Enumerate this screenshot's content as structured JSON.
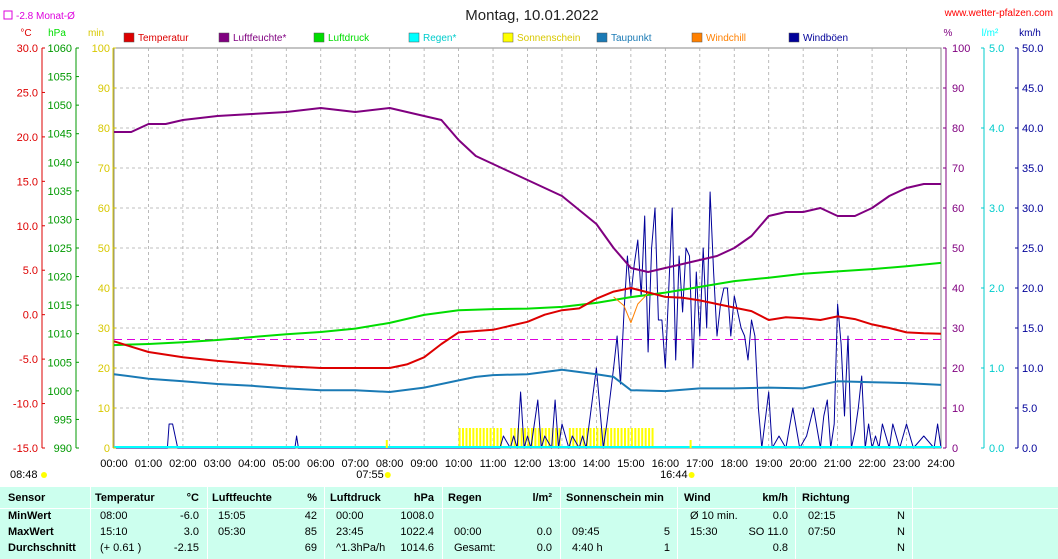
{
  "header": {
    "title": "Montag, 10.01.2022",
    "source": "www.wetter-pfalzen.com",
    "month_avg_label": "-2.8 Monat-Ø"
  },
  "units": {
    "left": [
      "°C",
      "hPa",
      "min"
    ],
    "right": [
      "%",
      "l/m²",
      "km/h"
    ]
  },
  "colors": {
    "temperature": "#dd0000",
    "humidity": "#800080",
    "pressure": "#00dd00",
    "rain": "#00ffff",
    "sunshine": "#ffff00",
    "dewpoint": "#1a7ab5",
    "windchill": "#ff8000",
    "gusts": "#000099",
    "month_avg": "#dd00dd"
  },
  "legend": [
    {
      "label": "Temperatur",
      "color": "#dd0000"
    },
    {
      "label": "Luftfeuchte*",
      "color": "#800080"
    },
    {
      "label": "Luftdruck",
      "color": "#00dd00"
    },
    {
      "label": "Regen*",
      "color": "#00ffff"
    },
    {
      "label": "Sonnenschein",
      "color": "#ffff00"
    },
    {
      "label": "Taupunkt",
      "color": "#1a7ab5"
    },
    {
      "label": "Windchill",
      "color": "#ff8000"
    },
    {
      "label": "Windböen",
      "color": "#000099"
    }
  ],
  "markers": {
    "sunrise": "07:55",
    "sunset": "16:44",
    "first": "08:48"
  },
  "chart_data": {
    "type": "line",
    "x_ticks": [
      "00:00",
      "01:00",
      "02:00",
      "03:00",
      "04:00",
      "05:00",
      "06:00",
      "07:00",
      "08:00",
      "09:00",
      "10:00",
      "11:00",
      "12:00",
      "13:00",
      "14:00",
      "15:00",
      "16:00",
      "17:00",
      "18:00",
      "19:00",
      "20:00",
      "21:00",
      "22:00",
      "23:00",
      "24:00"
    ],
    "axes": {
      "temperature": {
        "unit": "°C",
        "range": [
          -15,
          30
        ],
        "ticks": [
          "30.0",
          "25.0",
          "20.0",
          "15.0",
          "10.0",
          "5.0",
          "0.0",
          "-5.0",
          "-10.0",
          "-15.0"
        ]
      },
      "pressure": {
        "unit": "hPa",
        "range": [
          990,
          1060
        ],
        "ticks": [
          "1060",
          "1055",
          "1050",
          "1045",
          "1040",
          "1035",
          "1030",
          "1025",
          "1020",
          "1015",
          "1010",
          "1005",
          "1000",
          "995",
          "990"
        ]
      },
      "sunshine": {
        "unit": "min",
        "range": [
          0,
          100
        ],
        "ticks": [
          "100",
          "90",
          "80",
          "70",
          "60",
          "50",
          "40",
          "30",
          "20",
          "10",
          "0"
        ]
      },
      "humidity": {
        "unit": "%",
        "range": [
          0,
          100
        ],
        "ticks": [
          "100",
          "90",
          "80",
          "70",
          "60",
          "50",
          "40",
          "30",
          "20",
          "10",
          "0"
        ]
      },
      "rain": {
        "unit": "l/m²",
        "range": [
          0,
          5
        ],
        "ticks": [
          "5.0",
          "4.0",
          "3.0",
          "2.0",
          "1.0",
          "0.0"
        ]
      },
      "wind": {
        "unit": "km/h",
        "range": [
          0,
          50
        ],
        "ticks": [
          "50.0",
          "45.0",
          "40.0",
          "35.0",
          "30.0",
          "25.0",
          "20.0",
          "15.0",
          "10.0",
          "5.0",
          "0.0"
        ]
      }
    },
    "month_avg": -2.8,
    "series": [
      {
        "name": "Temperatur",
        "axis": "temperature",
        "x": [
          0,
          0.5,
          1,
          2,
          3,
          4,
          5,
          6,
          7,
          8,
          8.5,
          9,
          9.5,
          10,
          11,
          12,
          12.5,
          13,
          13.5,
          14,
          14.5,
          15,
          15.5,
          16,
          16.5,
          17,
          17.5,
          18,
          18.5,
          19,
          19.5,
          20,
          20.5,
          21,
          21.5,
          22,
          22.5,
          23,
          23.5,
          24
        ],
        "y": [
          -3.0,
          -3.6,
          -4.2,
          -4.8,
          -5.2,
          -5.5,
          -5.8,
          -6.0,
          -6.0,
          -6.0,
          -5.6,
          -4.8,
          -3.3,
          -2.0,
          -1.7,
          -0.8,
          0.0,
          0.5,
          0.7,
          1.8,
          2.6,
          3.0,
          2.5,
          2.0,
          1.9,
          1.6,
          1.2,
          0.8,
          0.4,
          -0.6,
          -0.3,
          -0.4,
          -0.6,
          -0.2,
          -0.5,
          -1.1,
          -1.5,
          -2.0,
          -2.1,
          -2.15
        ]
      },
      {
        "name": "Luftfeuchte*",
        "axis": "humidity",
        "x": [
          0,
          0.5,
          1,
          1.5,
          2,
          3,
          4,
          5,
          6,
          7,
          8,
          8.5,
          9,
          9.5,
          10,
          10.5,
          11,
          12,
          13,
          14,
          14.5,
          15,
          15.5,
          16,
          16.5,
          17,
          17.5,
          18,
          18.5,
          19,
          19.5,
          20,
          20.5,
          21,
          21.5,
          22,
          22.5,
          23,
          23.5,
          24
        ],
        "y": [
          79,
          79,
          81,
          81,
          82,
          83,
          83.5,
          84,
          85,
          84,
          85,
          84,
          83,
          82,
          77,
          73,
          71,
          67,
          63,
          56,
          50,
          45,
          44,
          45,
          46,
          47,
          48,
          50,
          53,
          58,
          59,
          59,
          60,
          58,
          58,
          60,
          63,
          65,
          66,
          66
        ]
      },
      {
        "name": "Luftdruck",
        "axis": "pressure",
        "x": [
          0,
          1,
          2,
          3,
          4,
          5,
          6,
          7,
          8,
          9,
          10,
          11,
          12,
          13,
          14,
          15,
          16,
          17,
          18,
          19,
          20,
          21,
          22,
          23,
          24
        ],
        "y": [
          1008.0,
          1008.2,
          1008.5,
          1008.9,
          1009.4,
          1009.9,
          1010.3,
          1010.9,
          1011.9,
          1013.3,
          1014.1,
          1014.3,
          1014.4,
          1014.7,
          1015.4,
          1016.4,
          1017.2,
          1018.2,
          1019.2,
          1019.8,
          1020.5,
          1020.9,
          1021.3,
          1021.8,
          1022.4
        ]
      },
      {
        "name": "Taupunkt",
        "axis": "temperature",
        "x": [
          0,
          1,
          2,
          3,
          4,
          5,
          6,
          7,
          8,
          9,
          10,
          10.5,
          11,
          12,
          13,
          14,
          14.5,
          15,
          16,
          17,
          18,
          19,
          20,
          21,
          22,
          23,
          24
        ],
        "y": [
          -6.7,
          -7.2,
          -7.5,
          -7.8,
          -8.0,
          -8.3,
          -8.5,
          -8.5,
          -8.7,
          -8.2,
          -7.4,
          -7.0,
          -6.8,
          -6.7,
          -6.2,
          -6.7,
          -7.0,
          -8.5,
          -8.6,
          -8.3,
          -8.3,
          -8.2,
          -8.3,
          -7.5,
          -7.6,
          -7.7,
          -7.9
        ]
      },
      {
        "name": "Windchill",
        "axis": "temperature",
        "x": [
          14.5,
          14.8,
          15.0,
          15.2,
          15.5
        ],
        "y": [
          2.0,
          1.0,
          -0.9,
          1.2,
          2.4
        ]
      },
      {
        "name": "Windböen",
        "axis": "wind",
        "x": [
          0,
          1.55,
          1.6,
          1.7,
          1.85,
          1.9,
          5.25,
          5.3,
          5.35,
          11.2,
          11.3,
          11.5,
          11.6,
          11.7,
          11.8,
          11.9,
          12.0,
          12.1,
          12.3,
          12.4,
          12.5,
          12.7,
          12.8,
          12.9,
          13.0,
          13.2,
          13.3,
          13.5,
          13.6,
          13.7,
          14.0,
          14.2,
          14.3,
          14.5,
          14.6,
          14.7,
          14.8,
          14.9,
          15.0,
          15.1,
          15.2,
          15.3,
          15.4,
          15.5,
          15.6,
          15.7,
          15.8,
          15.9,
          16.0,
          16.1,
          16.2,
          16.3,
          16.4,
          16.5,
          16.6,
          16.7,
          16.8,
          16.9,
          17.0,
          17.1,
          17.2,
          17.3,
          17.4,
          17.5,
          17.6,
          17.7,
          17.8,
          17.9,
          18.0,
          18.1,
          18.2,
          18.3,
          18.4,
          18.5,
          18.6,
          18.7,
          18.8,
          19.0,
          19.1,
          19.3,
          19.5,
          19.7,
          19.9,
          20.1,
          20.3,
          20.5,
          20.6,
          20.7,
          20.8,
          20.9,
          21.0,
          21.1,
          21.2,
          21.3,
          21.4,
          21.5,
          21.6,
          21.7,
          21.8,
          21.9,
          22.0,
          22.1,
          22.2,
          22.3,
          22.5,
          22.6,
          22.8,
          23.0,
          23.2,
          23.5,
          23.8,
          23.9,
          24
        ],
        "y": [
          0,
          0,
          3,
          3,
          0,
          0,
          0,
          1.5,
          0,
          0,
          1.5,
          0,
          1.5,
          0,
          7,
          0,
          1.5,
          0,
          6,
          0,
          1.5,
          0,
          6,
          0,
          3,
          0,
          1.5,
          0,
          1.5,
          0,
          10,
          0,
          3,
          10,
          14,
          8,
          17,
          24,
          19,
          23,
          26,
          19,
          29,
          12,
          25,
          30,
          16,
          16,
          10,
          20,
          30,
          11,
          24,
          17,
          25,
          24,
          10,
          22,
          14,
          25,
          15,
          32,
          22,
          14,
          18,
          20,
          20,
          14,
          19,
          17,
          15,
          14,
          11,
          16,
          14,
          5,
          0,
          7,
          0,
          1.5,
          0,
          5,
          0,
          1.5,
          5,
          0,
          4,
          6,
          0,
          3,
          18,
          13,
          4,
          14,
          0,
          2,
          5,
          9,
          0,
          3,
          0,
          1.5,
          0,
          3,
          0,
          3,
          0,
          3,
          0,
          1.5,
          0,
          3,
          0
        ]
      },
      {
        "name": "Sonnenschein",
        "axis": "sunshine",
        "x": [
          10.0,
          10.1,
          10.2,
          10.3,
          10.4,
          10.5,
          10.6,
          10.7,
          10.8,
          10.9,
          11.0,
          11.1,
          11.2,
          11.3,
          11.4,
          11.5,
          11.6,
          11.7,
          11.8,
          11.9,
          12.0,
          12.1,
          12.2,
          12.3,
          12.4,
          12.5,
          12.6,
          12.7,
          12.8,
          12.9,
          13.0,
          13.1,
          13.2,
          13.3,
          13.4,
          13.5,
          13.6,
          13.7,
          13.8,
          13.9,
          14.0,
          14.1,
          14.2,
          14.3,
          14.4,
          14.5,
          14.6,
          14.7,
          14.8,
          14.9,
          15.0,
          15.1,
          15.2,
          15.3,
          15.4,
          15.5,
          15.6
        ],
        "y": [
          5,
          5,
          5,
          5,
          5,
          5,
          5,
          5,
          5,
          5,
          5,
          5,
          5,
          0,
          0,
          5,
          5,
          5,
          5,
          5,
          5,
          5,
          5,
          5,
          5,
          5,
          5,
          5,
          5,
          5,
          0,
          0,
          5,
          5,
          5,
          5,
          5,
          5,
          5,
          5,
          5,
          5,
          5,
          5,
          5,
          5,
          5,
          5,
          5,
          5,
          5,
          5,
          5,
          5,
          5,
          5,
          5
        ]
      }
    ]
  },
  "table": {
    "headers": [
      {
        "label": "Sensor",
        "unit": ""
      },
      {
        "label": "Temperatur",
        "unit": "°C"
      },
      {
        "label": "Luftfeuchte",
        "unit": "%"
      },
      {
        "label": "Luftdruck",
        "unit": "hPa"
      },
      {
        "label": "Regen",
        "unit": "l/m²"
      },
      {
        "label": "Sonnenschein min",
        "unit": ""
      },
      {
        "label": "Wind",
        "unit": "km/h"
      },
      {
        "label": "Richtung",
        "unit": ""
      }
    ],
    "rows": [
      {
        "label": "MinWert",
        "cells": [
          "08:00",
          "-6.0",
          "15:05",
          "42",
          "00:00",
          "1008.0",
          "",
          "",
          "",
          "",
          "Ø 10 min.",
          "0.0",
          "02:15",
          "N"
        ]
      },
      {
        "label": "MaxWert",
        "cells": [
          "15:10",
          "3.0",
          "05:30",
          "85",
          "23:45",
          "1022.4",
          "00:00",
          "0.0",
          "09:45",
          "5",
          "15:30",
          "SO 11.0",
          "07:50",
          "N"
        ]
      },
      {
        "label": "Durchschnitt",
        "cells": [
          "(+ 0.61 )",
          "-2.15",
          "",
          "69",
          "^1.3hPa/h",
          "1014.6",
          "Gesamt:",
          "0.0",
          "4:40 h",
          "1",
          "",
          "0.8",
          "",
          "N"
        ]
      }
    ]
  }
}
